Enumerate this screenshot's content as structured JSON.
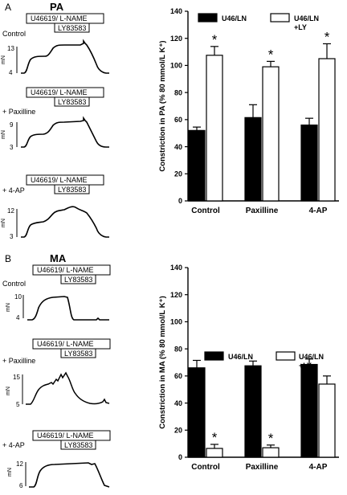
{
  "panels": [
    {
      "letter": "A",
      "region": "PA",
      "traces": [
        {
          "label": "Control",
          "box1": "U46619/ L-NAME",
          "box2": "LY83583",
          "ticks": [
            "13",
            "4"
          ],
          "unit": "mN"
        },
        {
          "label": "+ Paxilline",
          "box1": "U46619/ L-NAME",
          "box2": "LY83583",
          "ticks": [
            "9",
            "3"
          ],
          "unit": "mN"
        },
        {
          "label": "+ 4-AP",
          "box1": "U46619/ L-NAME",
          "box2": "LY83583",
          "ticks": [
            "12",
            "3"
          ],
          "unit": "mN"
        }
      ]
    },
    {
      "letter": "B",
      "region": "MA",
      "traces": [
        {
          "label": "Control",
          "box1": "U46619/ L-NAME",
          "box2": "LY83583",
          "ticks": [
            "10",
            "4"
          ],
          "unit": "mN"
        },
        {
          "label": "+ Paxilline",
          "box1": "U46619/ L-NAME",
          "box2": "LY83583",
          "ticks": [
            "15",
            "5"
          ],
          "unit": "mN"
        },
        {
          "label": "+ 4-AP",
          "box1": "U46619/ L-NAME",
          "box2": "LY83583",
          "ticks": [
            "12",
            "6"
          ],
          "unit": "mN"
        }
      ]
    }
  ],
  "chart_data": [
    {
      "type": "bar",
      "ylabel": "Constriction in PA (% 80 mmol/L K⁺)",
      "categories": [
        "Control",
        "Paxilline",
        "4-AP"
      ],
      "ylim": [
        0,
        140
      ],
      "yticks": [
        0,
        20,
        40,
        60,
        80,
        100,
        120,
        140
      ],
      "legend_position": "top",
      "series": [
        {
          "name": "U46/LN",
          "fill": "#000000",
          "values": [
            52,
            61.5,
            56
          ],
          "errors": [
            2.5,
            9.5,
            5
          ]
        },
        {
          "name": "U46/LN +LY",
          "fill": "#ffffff",
          "values": [
            107.5,
            99,
            105
          ],
          "errors": [
            6.5,
            4,
            11
          ]
        }
      ],
      "annotations": [
        {
          "category": "Control",
          "series": "U46/LN +LY",
          "text": "*"
        },
        {
          "category": "Paxilline",
          "series": "U46/LN +LY",
          "text": "*"
        },
        {
          "category": "4-AP",
          "series": "U46/LN +LY",
          "text": "*"
        }
      ]
    },
    {
      "type": "bar",
      "ylabel": "Constriction in MA (% 80 mmol/L K⁺)",
      "categories": [
        "Control",
        "Paxilline",
        "4-AP"
      ],
      "ylim": [
        0,
        140
      ],
      "yticks": [
        0,
        20,
        40,
        60,
        80,
        100,
        120,
        140
      ],
      "legend_position": "middle",
      "series": [
        {
          "name": "U46/LN",
          "fill": "#000000",
          "values": [
            66,
            67.5,
            68.5
          ],
          "errors": [
            5.5,
            3.5,
            4
          ]
        },
        {
          "name": "U46/LN +LY",
          "fill": "#ffffff",
          "values": [
            6.5,
            7,
            54
          ],
          "errors": [
            3,
            2,
            6
          ]
        }
      ],
      "annotations": [
        {
          "category": "Control",
          "series": "U46/LN +LY",
          "text": "*"
        },
        {
          "category": "Paxilline",
          "series": "U46/LN +LY",
          "text": "*"
        }
      ]
    }
  ]
}
